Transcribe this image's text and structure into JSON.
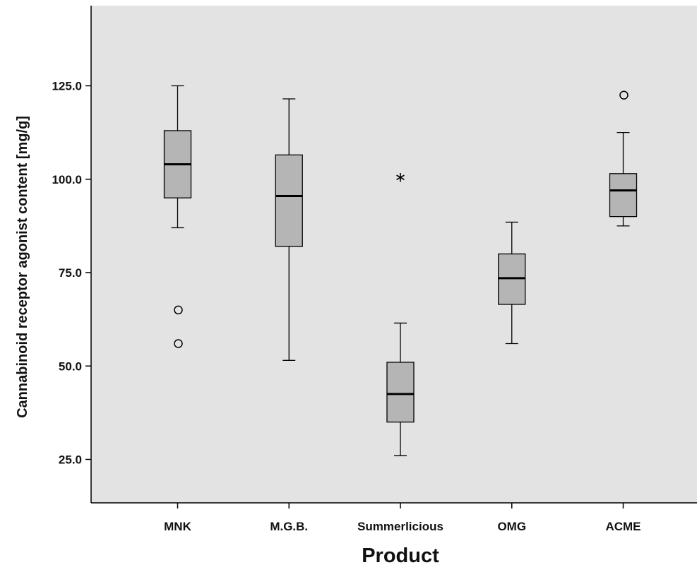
{
  "chart_data": {
    "type": "boxplot",
    "title": "",
    "xlabel": "Product",
    "ylabel": "Cannabinoid receptor agonist content [mg/g]",
    "ylim": [
      0,
      150
    ],
    "yticks": [
      25.0,
      50.0,
      75.0,
      100.0,
      125.0
    ],
    "ytick_labels": [
      "25.0",
      "50.0",
      "75.0",
      "100.0",
      "125.0"
    ],
    "grid": false,
    "colors": {
      "plot_background": "#e3e3e3",
      "box_fill": "#b5b5b5",
      "stroke": "#000000"
    },
    "categories": [
      "MNK",
      "M.G.B.",
      "Summerlicious",
      "OMG",
      "ACME"
    ],
    "boxes": [
      {
        "category": "MNK",
        "whisker_low": 87.0,
        "q1": 95.0,
        "median": 104.0,
        "q3": 113.0,
        "whisker_high": 125.0,
        "outliers": [
          65.0,
          56.0
        ],
        "extremes": []
      },
      {
        "category": "M.G.B.",
        "whisker_low": 51.5,
        "q1": 82.0,
        "median": 95.5,
        "q3": 106.5,
        "whisker_high": 121.5,
        "outliers": [],
        "extremes": []
      },
      {
        "category": "Summerlicious",
        "whisker_low": 26.0,
        "q1": 35.0,
        "median": 42.5,
        "q3": 51.0,
        "whisker_high": 61.5,
        "outliers": [],
        "extremes": [
          101.0
        ]
      },
      {
        "category": "OMG",
        "whisker_low": 56.0,
        "q1": 66.5,
        "median": 73.5,
        "q3": 80.0,
        "whisker_high": 88.5,
        "outliers": [],
        "extremes": []
      },
      {
        "category": "ACME",
        "whisker_low": 87.5,
        "q1": 90.0,
        "median": 97.0,
        "q3": 101.5,
        "whisker_high": 112.5,
        "outliers": [
          122.5
        ],
        "extremes": []
      }
    ]
  }
}
